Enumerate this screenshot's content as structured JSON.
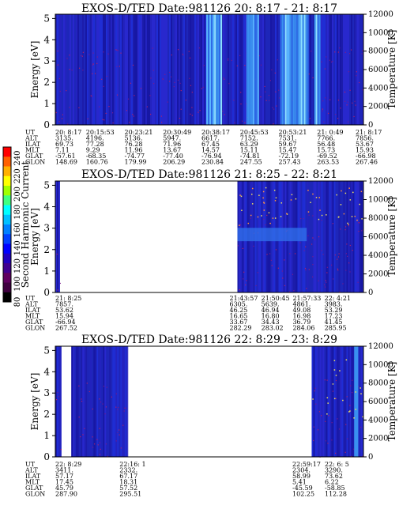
{
  "panels": [
    {
      "title": "EXOS-D/TED   Date:981126  20: 8:17 - 21: 8:17",
      "ylabel_left": "Energy [eV]",
      "ylabel_right": "Temperature [K]",
      "ephemeris": {
        "rows": [
          "UT",
          "ALT",
          "ILAT",
          "MLT",
          "GLAT",
          "GLON"
        ],
        "columns": [
          [
            "20: 8:17",
            "3135.",
            "69.73",
            "7.11",
            "-57.61",
            "148.69"
          ],
          [
            "20:15:53",
            "4196.",
            "77.28",
            "9.29",
            "-68.35",
            "160.76"
          ],
          [
            "20:23:21",
            "5136.",
            "76.28",
            "11.96",
            "-74.77",
            "179.99"
          ],
          [
            "20:30:49",
            "5947.",
            "71.96",
            "13.67",
            "-77.40",
            "206.29"
          ],
          [
            "20:38:17",
            "6617.",
            "67.45",
            "14.57",
            "-76.94",
            "230.84"
          ],
          [
            "20:45:53",
            "7152.",
            "63.29",
            "15.11",
            "-74.81",
            "247.55"
          ],
          [
            "20:53:21",
            "7531.",
            "59.67",
            "15.47",
            "-72.19",
            "257.43"
          ],
          [
            "21: 0:49",
            "7766.",
            "56.48",
            "15.73",
            "-69.52",
            "263.53"
          ],
          [
            "21: 8:17",
            "7856.",
            "53.67",
            "15.93",
            "-66.98",
            "267.46"
          ]
        ]
      }
    },
    {
      "title": "EXOS-D/TED   Date:981126  21: 8:25 - 22: 8:21",
      "ylabel_left": "Energy [eV]",
      "ylabel_right": "Temperature [K]",
      "ephemeris": {
        "rows": [
          "UT",
          "ALT",
          "ILAT",
          "MLT",
          "GLAT",
          "GLON"
        ],
        "columns": [
          [
            "21: 8:25",
            "7857.",
            "53.62",
            "15.94",
            "-66.94",
            "267.52"
          ],
          [
            "21:43:57",
            "6305.",
            "46.25",
            "16.65",
            "33.67",
            "282.29"
          ],
          [
            "21:50:45",
            "5639.",
            "46.94",
            "16.80",
            "34.43",
            "283.02"
          ],
          [
            "21:57:33",
            "4861.",
            "49.08",
            "16.98",
            "36.79",
            "284.06"
          ],
          [
            "22: 4:21",
            "3983.",
            "53.29",
            "17.23",
            "41.45",
            "285.95"
          ]
        ]
      }
    },
    {
      "title": "EXOS-D/TED   Date:981126  22: 8:29 - 23: 8:29",
      "ylabel_left": "Energy [eV]",
      "ylabel_right": "Temperature [K]",
      "ephemeris": {
        "rows": [
          "UT",
          "ALT",
          "ILAT",
          "MLT",
          "GLAT",
          "GLON"
        ],
        "columns": [
          [
            "22: 8:29",
            "3411.",
            "57.17",
            "17.45",
            "45.79",
            "287.90"
          ],
          [
            "22:16: 1",
            "2332.",
            "67.17",
            "18.31",
            "57.52",
            "295.51"
          ],
          [
            "22:59:17",
            "2304.",
            "58.99",
            "5.41",
            "-45.59",
            "102.25"
          ],
          [
            "22: 6: 5",
            "3290.",
            "73.62",
            "6.22",
            "-58.85",
            "112.28"
          ]
        ]
      }
    }
  ],
  "colorbar": {
    "label": "Second Harmonic Current",
    "ticks": [
      "240",
      "220",
      "200",
      "180",
      "160",
      "140",
      "120",
      "100",
      "80"
    ]
  },
  "chart_data": [
    {
      "type": "heatmap",
      "title": "EXOS-D/TED   Date:981126  20: 8:17 - 21: 8:17",
      "xlabel": "UT",
      "ylabel": "Energy [eV]",
      "y2label": "Temperature [K]",
      "x_ticks": [
        "20: 8:17",
        "20:15:53",
        "20:23:21",
        "20:30:49",
        "20:38:17",
        "20:45:53",
        "20:53:21",
        "21: 0:49",
        "21: 8:17"
      ],
      "y_ticks": [
        0,
        1,
        2,
        3,
        4,
        5
      ],
      "y2_ticks": [
        0,
        2000,
        4000,
        6000,
        8000,
        10000,
        12000
      ],
      "ylim": [
        0,
        5.2
      ],
      "y2lim": [
        0,
        12000
      ],
      "data_segments": [
        [
          0,
          1
        ]
      ],
      "bright_bands": [
        [
          0.49,
          0.54
        ],
        [
          0.62,
          0.66
        ],
        [
          0.73,
          0.82
        ],
        [
          0.84,
          0.86
        ]
      ],
      "color_scale": [
        80,
        240
      ]
    },
    {
      "type": "heatmap",
      "title": "EXOS-D/TED   Date:981126  21: 8:25 - 22: 8:21",
      "xlabel": "UT",
      "ylabel": "Energy [eV]",
      "y2label": "Temperature [K]",
      "x_ticks": [
        "21: 8:25",
        "21:43:57",
        "21:50:45",
        "21:57:33",
        "22: 4:21"
      ],
      "y_ticks": [
        0,
        1,
        2,
        3,
        4,
        5
      ],
      "y2_ticks": [
        0,
        2000,
        4000,
        6000,
        8000,
        10000,
        12000
      ],
      "ylim": [
        0,
        5.2
      ],
      "y2lim": [
        0,
        12000
      ],
      "data_segments": [
        [
          0,
          0.015
        ],
        [
          0.591,
          1
        ]
      ],
      "color_scale": [
        80,
        240
      ]
    },
    {
      "type": "heatmap",
      "title": "EXOS-D/TED   Date:981126  22: 8:29 - 23: 8:29",
      "xlabel": "UT",
      "ylabel": "Energy [eV]",
      "y2label": "Temperature [K]",
      "x_ticks": [
        "22: 8:29",
        "22:16: 1",
        "22:59:17",
        "22: 6: 5"
      ],
      "y_ticks": [
        0,
        1,
        2,
        3,
        4,
        5
      ],
      "y2_ticks": [
        0,
        2000,
        4000,
        6000,
        8000,
        10000,
        12000
      ],
      "ylim": [
        0,
        5.2
      ],
      "y2lim": [
        0,
        12000
      ],
      "data_segments": [
        [
          0,
          0.018
        ],
        [
          0.052,
          0.234
        ],
        [
          0.832,
          1
        ]
      ],
      "color_scale": [
        80,
        240
      ]
    }
  ]
}
